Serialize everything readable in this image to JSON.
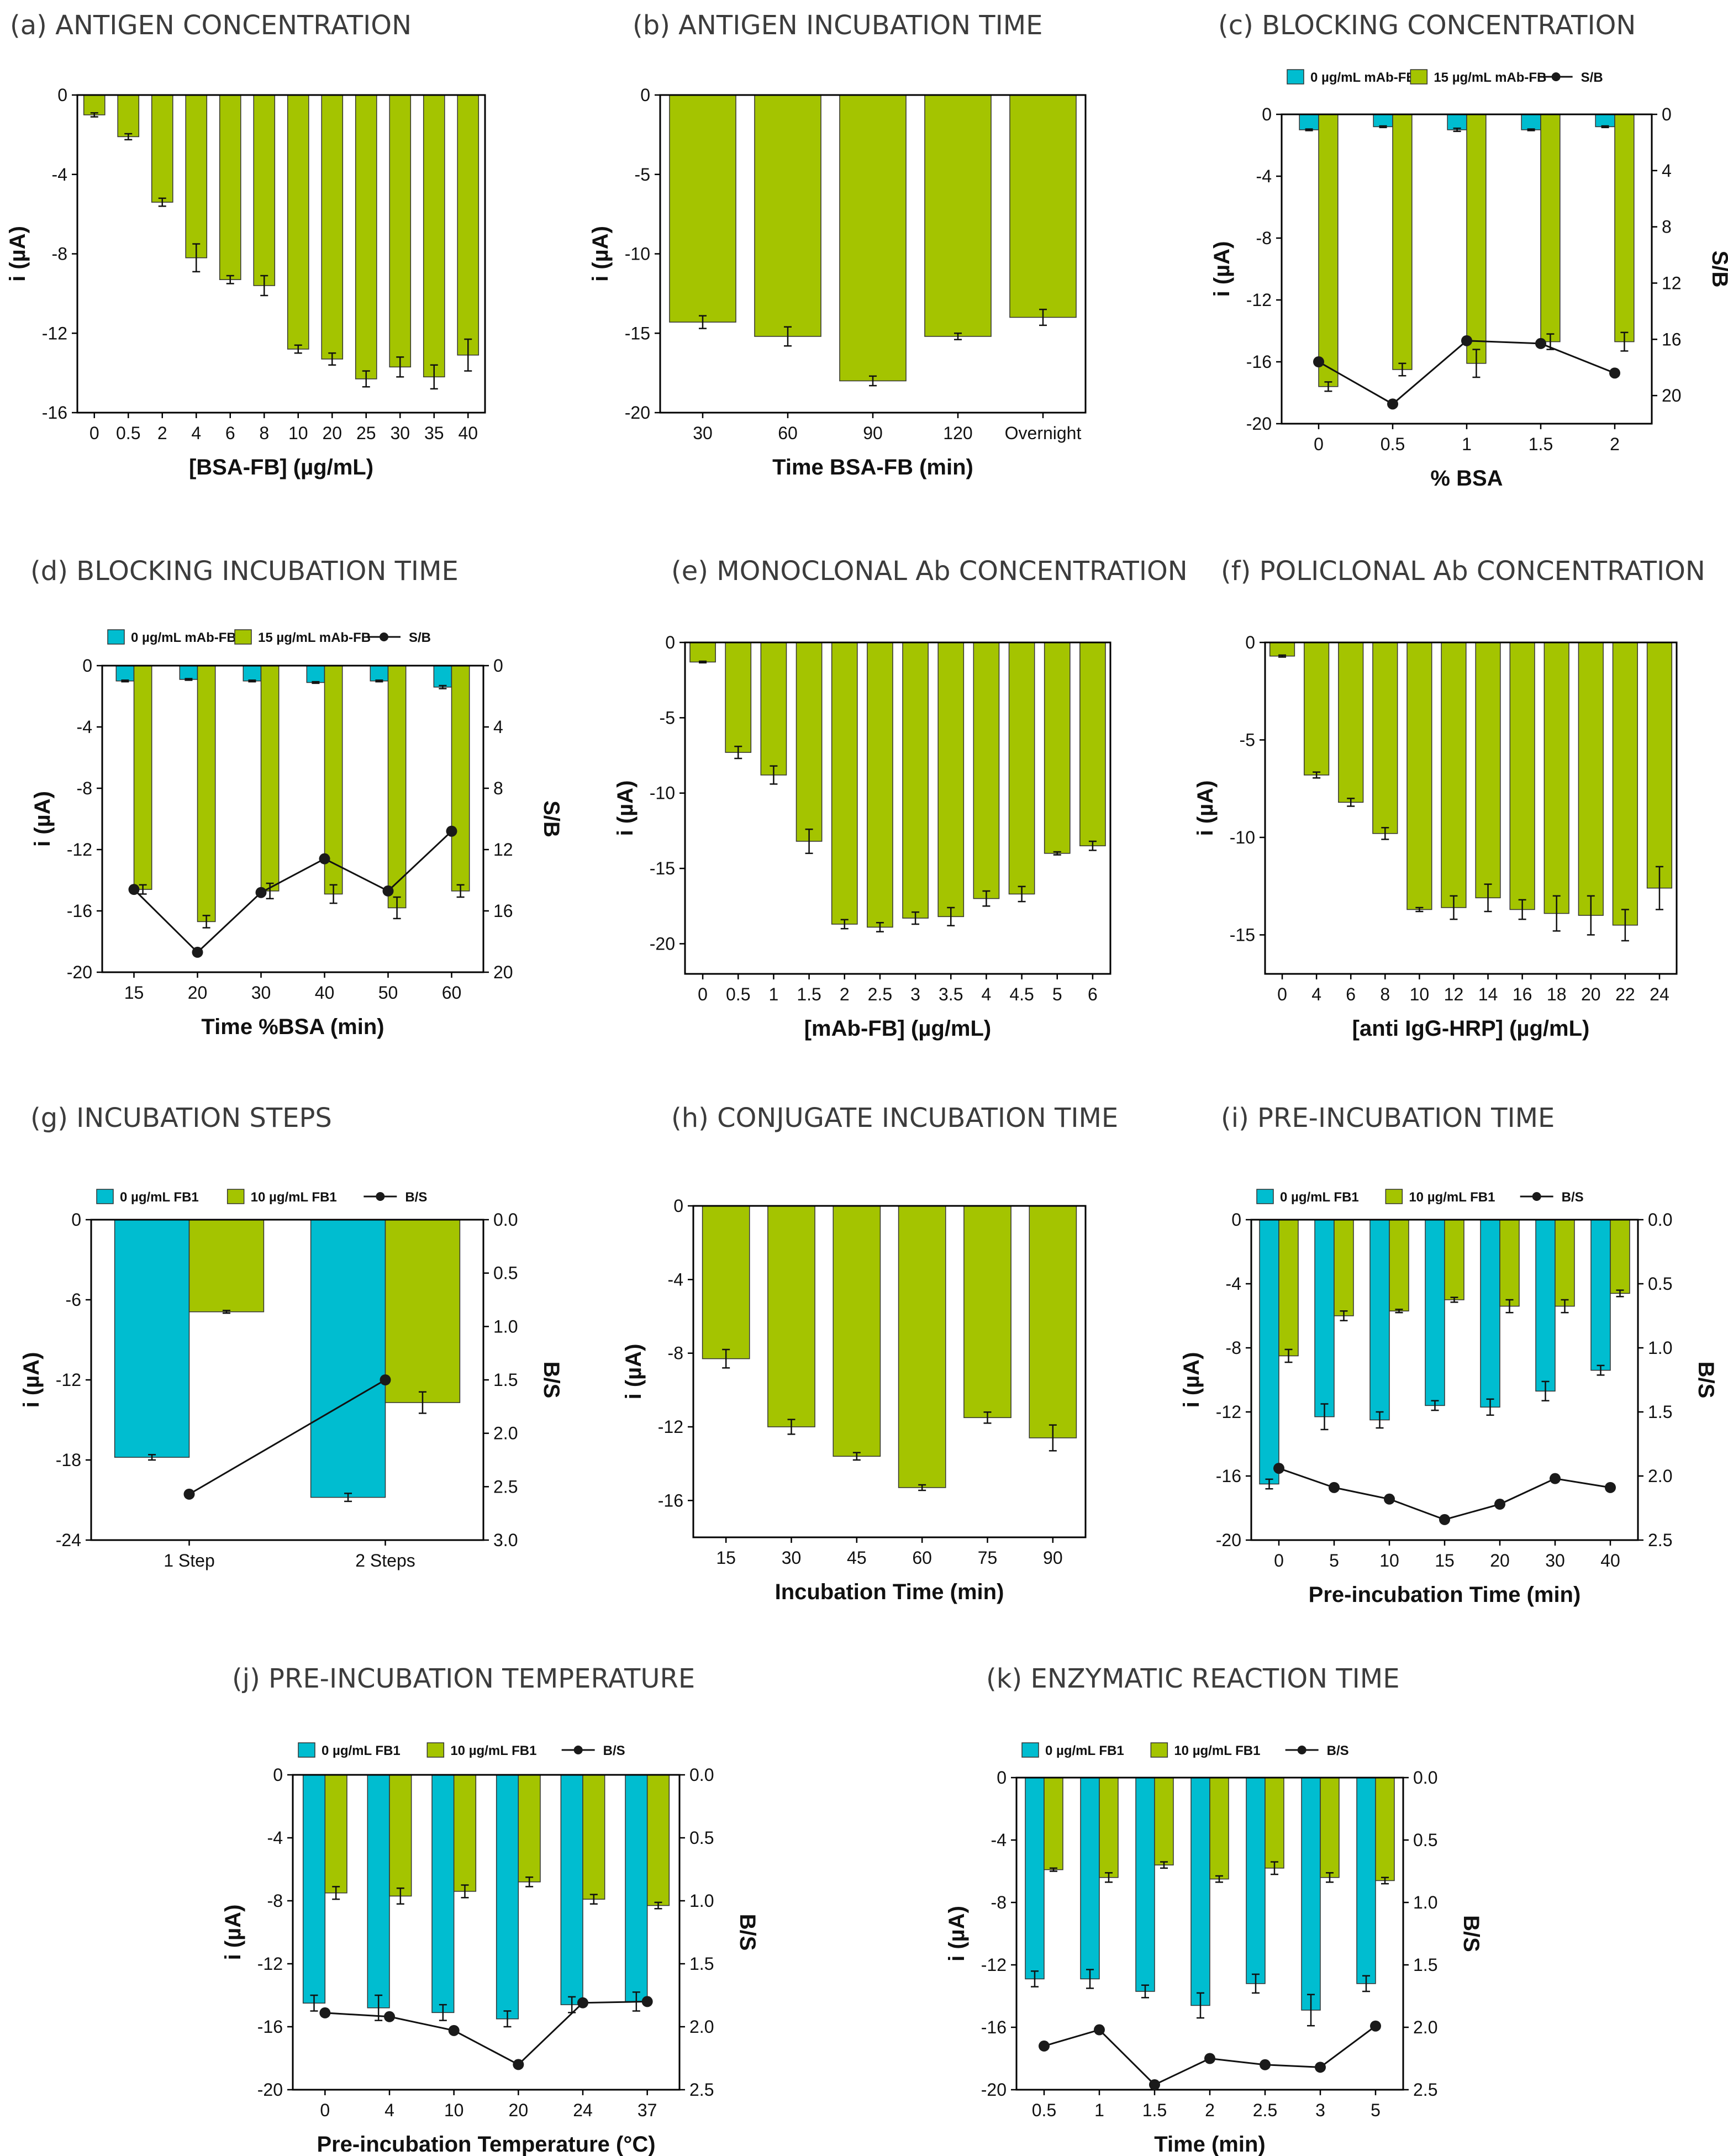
{
  "colors": {
    "green": "#a4c400",
    "cyan": "#00bdd0",
    "line": "#111111",
    "err": "#111111",
    "axis": "#000000"
  },
  "chart_data": [
    {
      "id": "a",
      "type": "bar",
      "title": "(a) ANTIGEN CONCENTRATION",
      "xlabel": "[BSA-FB] (µg/mL)",
      "ylabel": "i (µA)",
      "ylim": [
        -16,
        0
      ],
      "yticks": [
        0,
        -4,
        -8,
        -12,
        -16
      ],
      "categories": [
        "0",
        "0.5",
        "2",
        "4",
        "6",
        "8",
        "10",
        "20",
        "25",
        "30",
        "35",
        "40"
      ],
      "series": [
        {
          "name": "",
          "color": "green",
          "values": [
            -1.0,
            -2.1,
            -5.4,
            -8.2,
            -9.3,
            -9.6,
            -12.8,
            -13.3,
            -14.3,
            -13.7,
            -14.2,
            -13.1
          ],
          "errors": [
            0.1,
            0.15,
            0.2,
            0.7,
            0.2,
            0.5,
            0.2,
            0.3,
            0.4,
            0.5,
            0.6,
            0.8
          ]
        }
      ]
    },
    {
      "id": "b",
      "type": "bar",
      "title": "(b) ANTIGEN INCUBATION TIME",
      "xlabel": "Time BSA-FB (min)",
      "ylabel": "i (µA)",
      "ylim": [
        -20,
        0
      ],
      "yticks": [
        0,
        -5,
        -10,
        -15,
        -20
      ],
      "categories": [
        "30",
        "60",
        "90",
        "120",
        "Overnight"
      ],
      "series": [
        {
          "name": "",
          "color": "green",
          "values": [
            -14.3,
            -15.2,
            -18.0,
            -15.2,
            -14.0
          ],
          "errors": [
            0.4,
            0.6,
            0.3,
            0.2,
            0.5
          ]
        }
      ]
    },
    {
      "id": "c",
      "type": "bar",
      "title": "(c) BLOCKING CONCENTRATION",
      "xlabel": "% BSA",
      "ylabel": "i (µA)",
      "y2label": "S/B",
      "ylim": [
        -20,
        0
      ],
      "yticks": [
        0,
        -4,
        -8,
        -12,
        -16,
        -20
      ],
      "y2lim": [
        0,
        22
      ],
      "y2ticks": [
        0,
        4,
        8,
        12,
        16,
        20
      ],
      "categories": [
        "0",
        "0.5",
        "1",
        "1.5",
        "2"
      ],
      "legend": [
        "0 µg/mL mAb-FB",
        "15 µg/mL mAb-FB",
        "S/B"
      ],
      "series": [
        {
          "name": "0 µg/mL mAb-FB",
          "color": "cyan",
          "values": [
            -1.0,
            -0.8,
            -1.0,
            -1.0,
            -0.8
          ],
          "errors": [
            0.05,
            0.05,
            0.1,
            0.05,
            0.05
          ]
        },
        {
          "name": "15 µg/mL mAb-FB",
          "color": "green",
          "values": [
            -17.6,
            -16.5,
            -16.1,
            -14.7,
            -14.7
          ],
          "errors": [
            0.3,
            0.4,
            0.9,
            0.5,
            0.6
          ]
        }
      ],
      "line": {
        "name": "S/B",
        "values": [
          17.6,
          20.6,
          16.1,
          16.3,
          18.4
        ]
      }
    },
    {
      "id": "d",
      "type": "bar",
      "title": "(d) BLOCKING INCUBATION TIME",
      "xlabel": "Time %BSA (min)",
      "ylabel": "i (µA)",
      "y2label": "S/B",
      "ylim": [
        -20,
        0
      ],
      "yticks": [
        0,
        -4,
        -8,
        -12,
        -16,
        -20
      ],
      "y2lim": [
        0,
        20
      ],
      "y2ticks": [
        0,
        4,
        8,
        12,
        16,
        20
      ],
      "categories": [
        "15",
        "20",
        "30",
        "40",
        "50",
        "60"
      ],
      "legend": [
        "0 µg/mL mAb-FB",
        "15 µg/mL mAb-FB",
        "S/B"
      ],
      "series": [
        {
          "name": "0 µg/mL mAb-FB",
          "color": "cyan",
          "values": [
            -1.0,
            -0.9,
            -1.0,
            -1.1,
            -1.0,
            -1.4
          ],
          "errors": [
            0.05,
            0.05,
            0.05,
            0.05,
            0.05,
            0.1
          ]
        },
        {
          "name": "15 µg/mL mAb-FB",
          "color": "green",
          "values": [
            -14.6,
            -16.7,
            -14.7,
            -14.9,
            -15.8,
            -14.7
          ],
          "errors": [
            0.3,
            0.4,
            0.5,
            0.6,
            0.7,
            0.4
          ]
        }
      ],
      "line": {
        "name": "S/B",
        "values": [
          14.6,
          18.7,
          14.8,
          12.6,
          14.7,
          10.8
        ]
      }
    },
    {
      "id": "e",
      "type": "bar",
      "title": "(e) MONOCLONAL Ab CONCENTRATION",
      "xlabel": "[mAb-FB] (µg/mL)",
      "ylabel": "i (µA)",
      "ylim": [
        -22,
        0
      ],
      "yticks": [
        0,
        -5,
        -10,
        -15,
        -20
      ],
      "categories": [
        "0",
        "0.5",
        "1",
        "1.5",
        "2",
        "2.5",
        "3",
        "3.5",
        "4",
        "4.5",
        "5",
        "6"
      ],
      "series": [
        {
          "name": "",
          "color": "green",
          "values": [
            -1.3,
            -7.3,
            -8.8,
            -13.2,
            -18.7,
            -18.9,
            -18.3,
            -18.2,
            -17.0,
            -16.7,
            -14.0,
            -13.5
          ],
          "errors": [
            0.05,
            0.4,
            0.6,
            0.8,
            0.3,
            0.3,
            0.4,
            0.6,
            0.5,
            0.5,
            0.1,
            0.3
          ]
        }
      ]
    },
    {
      "id": "f",
      "type": "bar",
      "title": "(f) POLICLONAL Ab CONCENTRATION",
      "xlabel": "[anti IgG-HRP] (µg/mL)",
      "ylabel": "i (µA)",
      "ylim": [
        -17,
        0
      ],
      "yticks": [
        0,
        -5,
        -10,
        -15
      ],
      "categories": [
        "0",
        "4",
        "6",
        "8",
        "10",
        "12",
        "14",
        "16",
        "18",
        "20",
        "22",
        "24"
      ],
      "series": [
        {
          "name": "",
          "color": "green",
          "values": [
            -0.7,
            -6.8,
            -8.2,
            -9.8,
            -13.7,
            -13.6,
            -13.1,
            -13.7,
            -13.9,
            -14.0,
            -14.5,
            -12.6
          ],
          "errors": [
            0.05,
            0.15,
            0.2,
            0.3,
            0.1,
            0.6,
            0.7,
            0.5,
            0.9,
            1.0,
            0.8,
            1.1
          ]
        }
      ]
    },
    {
      "id": "g",
      "type": "bar",
      "title": "(g) INCUBATION STEPS",
      "xlabel": "",
      "ylabel": "i (µA)",
      "y2label": "B/S",
      "ylim": [
        -24,
        0
      ],
      "yticks": [
        0,
        -6,
        -12,
        -18,
        -24
      ],
      "y2lim": [
        0,
        3
      ],
      "y2ticks": [
        "0.0",
        "0.5",
        "1.0",
        "1.5",
        "2.0",
        "2.5",
        "3.0"
      ],
      "categories": [
        "1 Step",
        "2 Steps"
      ],
      "legend": [
        "0 µg/mL FB1",
        "10 µg/mL FB1",
        "B/S"
      ],
      "series": [
        {
          "name": "0 µg/mL FB1",
          "color": "cyan",
          "values": [
            -17.8,
            -20.8
          ],
          "errors": [
            0.2,
            0.3
          ]
        },
        {
          "name": "10 µg/mL FB1",
          "color": "green",
          "values": [
            -6.9,
            -13.7
          ],
          "errors": [
            0.1,
            0.8
          ]
        }
      ],
      "line": {
        "name": "B/S",
        "values": [
          2.57,
          1.5
        ]
      }
    },
    {
      "id": "h",
      "type": "bar",
      "title": "(h) CONJUGATE INCUBATION TIME",
      "xlabel": "Incubation Time (min)",
      "ylabel": "i (µA)",
      "ylim": [
        -18,
        0
      ],
      "yticks": [
        0,
        -4,
        -8,
        -12,
        -16
      ],
      "categories": [
        "15",
        "30",
        "45",
        "60",
        "75",
        "90"
      ],
      "series": [
        {
          "name": "",
          "color": "green",
          "values": [
            -8.3,
            -12.0,
            -13.6,
            -15.3,
            -11.5,
            -12.6
          ],
          "errors": [
            0.5,
            0.4,
            0.2,
            0.15,
            0.3,
            0.7
          ]
        }
      ]
    },
    {
      "id": "i",
      "type": "bar",
      "title": "(i) PRE-INCUBATION TIME",
      "xlabel": "Pre-incubation Time (min)",
      "ylabel": "i (µA)",
      "y2label": "B/S",
      "ylim": [
        -20,
        0
      ],
      "yticks": [
        0,
        -4,
        -8,
        -12,
        -16,
        -20
      ],
      "y2lim": [
        0,
        2.5
      ],
      "y2ticks": [
        "0.0",
        "0.5",
        "1.0",
        "1.5",
        "2.0",
        "2.5"
      ],
      "categories": [
        "0",
        "5",
        "10",
        "15",
        "20",
        "30",
        "40"
      ],
      "legend": [
        "0 µg/mL FB1",
        "10 µg/mL FB1",
        "B/S"
      ],
      "series": [
        {
          "name": "0 µg/mL FB1",
          "color": "cyan",
          "values": [
            -16.5,
            -12.3,
            -12.5,
            -11.6,
            -11.7,
            -10.7,
            -9.4
          ],
          "errors": [
            0.3,
            0.8,
            0.5,
            0.3,
            0.5,
            0.6,
            0.3
          ]
        },
        {
          "name": "10 µg/mL FB1",
          "color": "green",
          "values": [
            -8.5,
            -6.0,
            -5.7,
            -5.0,
            -5.4,
            -5.4,
            -4.6
          ],
          "errors": [
            0.4,
            0.3,
            0.1,
            0.15,
            0.4,
            0.4,
            0.2
          ]
        }
      ],
      "line": {
        "name": "B/S",
        "values": [
          1.94,
          2.09,
          2.18,
          2.34,
          2.22,
          2.02,
          2.09
        ]
      }
    },
    {
      "id": "j",
      "type": "bar",
      "title": "(j) PRE-INCUBATION TEMPERATURE",
      "xlabel": "Pre-incubation Temperature (°C)",
      "ylabel": "i (µA)",
      "y2label": "B/S",
      "ylim": [
        -20,
        0
      ],
      "yticks": [
        0,
        -4,
        -8,
        -12,
        -16,
        -20
      ],
      "y2lim": [
        0,
        2.5
      ],
      "y2ticks": [
        "0.0",
        "0.5",
        "1.0",
        "1.5",
        "2.0",
        "2.5"
      ],
      "categories": [
        "0",
        "4",
        "10",
        "20",
        "24",
        "37"
      ],
      "legend": [
        "0 µg/mL FB1",
        "10 µg/mL FB1",
        "B/S"
      ],
      "series": [
        {
          "name": "0 µg/mL FB1",
          "color": "cyan",
          "values": [
            -14.5,
            -14.8,
            -15.1,
            -15.5,
            -14.6,
            -14.4
          ],
          "errors": [
            0.5,
            0.8,
            0.5,
            0.5,
            0.5,
            0.6
          ]
        },
        {
          "name": "10 µg/mL FB1",
          "color": "green",
          "values": [
            -7.5,
            -7.7,
            -7.4,
            -6.8,
            -7.9,
            -8.3
          ],
          "errors": [
            0.4,
            0.5,
            0.4,
            0.3,
            0.3,
            0.2
          ]
        }
      ],
      "line": {
        "name": "B/S",
        "values": [
          1.89,
          1.92,
          2.03,
          2.3,
          1.81,
          1.8
        ]
      }
    },
    {
      "id": "k",
      "type": "bar",
      "title": "(k) ENZYMATIC REACTION TIME",
      "xlabel": "Time (min)",
      "ylabel": "i (µA)",
      "y2label": "B/S",
      "ylim": [
        -20,
        0
      ],
      "yticks": [
        0,
        -4,
        -8,
        -12,
        -16,
        -20
      ],
      "y2lim": [
        0,
        2.5
      ],
      "y2ticks": [
        "0.0",
        "0.5",
        "1.0",
        "1.5",
        "2.0",
        "2.5"
      ],
      "categories": [
        "0.5",
        "1",
        "1.5",
        "2",
        "2.5",
        "3",
        "5"
      ],
      "legend": [
        "0 µg/mL FB1",
        "10 µg/mL FB1",
        "B/S"
      ],
      "series": [
        {
          "name": "0 µg/mL FB1",
          "color": "cyan",
          "values": [
            -12.9,
            -12.9,
            -13.7,
            -14.6,
            -13.2,
            -14.9,
            -13.2
          ],
          "errors": [
            0.5,
            0.6,
            0.4,
            0.8,
            0.6,
            1.0,
            0.5
          ]
        },
        {
          "name": "10 µg/mL FB1",
          "color": "green",
          "values": [
            -5.9,
            -6.4,
            -5.6,
            -6.5,
            -5.8,
            -6.4,
            -6.6
          ],
          "errors": [
            0.1,
            0.3,
            0.2,
            0.2,
            0.4,
            0.3,
            0.2
          ]
        }
      ],
      "line": {
        "name": "B/S",
        "values": [
          2.15,
          2.02,
          2.46,
          2.25,
          2.3,
          2.32,
          1.99
        ]
      }
    }
  ]
}
